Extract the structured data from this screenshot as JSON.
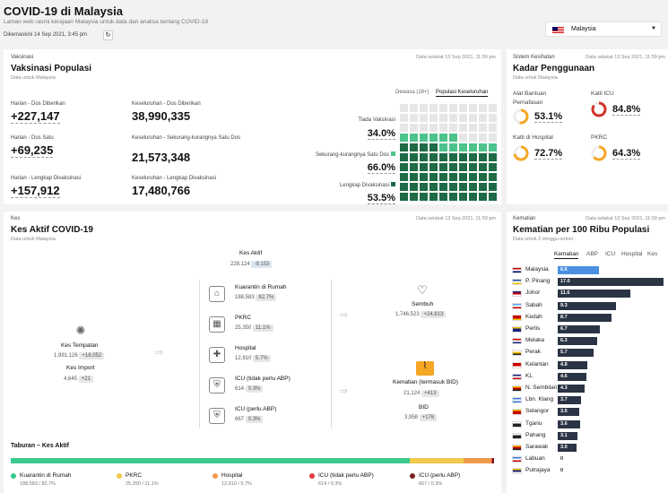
{
  "header": {
    "title": "COVID-19 di Malaysia",
    "subtitle": "Laman web rasmi kerajaan Malaysia untuk data dan analisa tentang COVID-19",
    "updated": "Dikemaskini 14 Sep 2021, 3:45 pm",
    "country_select": "Malaysia"
  },
  "vaccination": {
    "section": "Vaksinasi",
    "title": "Vaksinasi Populasi",
    "subtitle": "Data untuk Malaysia",
    "asof": "Data selakat 13 Sep 2021, 11:59 pm",
    "tabs": [
      "Dewasa (18+)",
      "Populasi Keseluruhan"
    ],
    "stats": [
      {
        "label": "Harian - Dos Diberikan",
        "value": "+227,147"
      },
      {
        "label": "Keseluruhan - Dos Diberikan",
        "value": "38,990,335"
      },
      {
        "label": "Harian - Dos Satu",
        "value": "+69,235"
      },
      {
        "label": "Keseluruhan - Sekurang-kurangnya Satu Dos",
        "value": "21,573,348"
      },
      {
        "label": "Harian - Lengkap Divaksinasi",
        "value": "+157,912"
      },
      {
        "label": "Keseluruhan - Lengkap Divaksinasi",
        "value": "17,480,766"
      }
    ],
    "breakdown": [
      {
        "label": "Tiada Vaksinasi",
        "value": "34.0%"
      },
      {
        "label": "Sekurang-kurangnya Satu Dos",
        "value": "66.0%"
      },
      {
        "label": "Lengkap Divaksinasi",
        "value": "53.5%"
      }
    ],
    "colors": {
      "none": "#e6e6e6",
      "one": "#4cc38a",
      "full": "#1e6b45"
    }
  },
  "health": {
    "section": "Sistem Kesihatan",
    "title": "Kadar Penggunaan",
    "subtitle": "Data untuk Malaysia",
    "asof": "Data selakat 13 Sep 2021, 11:59 pm",
    "items": [
      {
        "label1": "Alat Bantuan",
        "label2": "Pernafasan",
        "value": "53.1%",
        "pct": 53.1,
        "color": "#f5a623"
      },
      {
        "label1": "Katil ICU",
        "label2": "",
        "value": "84.8%",
        "pct": 84.8,
        "color": "#d0342c"
      },
      {
        "label1": "Katil di Hospital",
        "label2": "",
        "value": "72.7%",
        "pct": 72.7,
        "color": "#f5a623"
      },
      {
        "label1": "PKRC",
        "label2": "",
        "value": "64.3%",
        "pct": 64.3,
        "color": "#f5a623"
      }
    ]
  },
  "cases": {
    "section": "Kes",
    "title": "Kes Aktif COVID-19",
    "subtitle": "Data untuk Malaysia",
    "asof": "Data selakat 13 Sep 2021, 11:59 pm",
    "active_label": "Kes Aktif",
    "active_value": "228,124",
    "active_delta": "-9,153",
    "local_label": "Kes Tempatan",
    "local_value": "1,991,126",
    "local_delta": "+16,052",
    "import_label": "Kes Import",
    "import_value": "4,645",
    "import_delta": "+21",
    "categories": [
      {
        "label": "Kuarantin di Rumah",
        "value": "188,583",
        "pct": "82.7%"
      },
      {
        "label": "PKRC",
        "value": "25,350",
        "pct": "11.1%"
      },
      {
        "label": "Hospital",
        "value": "12,910",
        "pct": "5.7%"
      },
      {
        "label": "ICU (tidak perlu ABP)",
        "value": "614",
        "pct": "0.3%"
      },
      {
        "label": "ICU (perlu ABP)",
        "value": "667",
        "pct": "0.3%"
      }
    ],
    "recovered_label": "Sembuh",
    "recovered_value": "1,746,523",
    "recovered_delta": "+24,813",
    "deaths_label": "Kematian (termasuk BID)",
    "deaths_value": "21,124",
    "deaths_delta": "+413",
    "bid_label": "BID",
    "bid_value": "3,958",
    "bid_delta": "+176",
    "dist_title": "Taburan – Kes Aktif",
    "legend": [
      {
        "label": "Kuarantin di Rumah",
        "sub": "188,583 / 82.7%",
        "color": "#3cc98f",
        "share": 82.7
      },
      {
        "label": "PKRC",
        "sub": "25,350 / 11.1%",
        "color": "#f2c94c",
        "share": 11.1
      },
      {
        "label": "Hospital",
        "sub": "12,910 / 5.7%",
        "color": "#f2994a",
        "share": 5.7
      },
      {
        "label": "ICU (tidak perlu ABP)",
        "sub": "614 / 0.3%",
        "color": "#e23b3b",
        "share": 0.3
      },
      {
        "label": "ICU (perlu ABP)",
        "sub": "667 / 0.3%",
        "color": "#7a1f1f",
        "share": 0.3
      }
    ]
  },
  "deaths": {
    "section": "Kematian",
    "title": "Kematian per 100 Ribu Populasi",
    "subtitle": "Data untuk 2 minggu terkini",
    "asof": "Data selakat 13 Sep 2021, 11:59 pm",
    "tabs": [
      "Kematian",
      "ABP",
      "ICU",
      "Hospital",
      "Kes"
    ],
    "states": [
      {
        "name": "Malaysia",
        "value": 6.6,
        "label": "6.6",
        "flag": [
          "#cc0001",
          "#ffffff",
          "#010066"
        ]
      },
      {
        "name": "P. Pinang",
        "value": 17.0,
        "label": "17.0",
        "flag": [
          "#1e4fa3",
          "#ffffff",
          "#f2c200"
        ]
      },
      {
        "name": "Johor",
        "value": 11.6,
        "label": "11.6",
        "flag": [
          "#1a237e",
          "#cc0000",
          "#ffffff"
        ]
      },
      {
        "name": "Sabah",
        "value": 9.3,
        "label": "9.3",
        "flag": [
          "#4da6ff",
          "#ffffff",
          "#cc0000"
        ]
      },
      {
        "name": "Kedah",
        "value": 8.7,
        "label": "8.7",
        "flag": [
          "#cc0000",
          "#cc0000",
          "#f2c200"
        ]
      },
      {
        "name": "Perlis",
        "value": 6.7,
        "label": "6.7",
        "flag": [
          "#f2c200",
          "#1a237e",
          "#1a237e"
        ]
      },
      {
        "name": "Melaka",
        "value": 6.3,
        "label": "6.3",
        "flag": [
          "#cc0000",
          "#ffffff",
          "#1a237e"
        ]
      },
      {
        "name": "Perak",
        "value": 5.7,
        "label": "5.7",
        "flag": [
          "#ffffff",
          "#f2c200",
          "#222222"
        ]
      },
      {
        "name": "Kelantan",
        "value": 4.8,
        "label": "4.8",
        "flag": [
          "#cc0000",
          "#cc0000",
          "#ffffff"
        ]
      },
      {
        "name": "KL",
        "value": 4.6,
        "label": "4.6",
        "flag": [
          "#1a237e",
          "#ffffff",
          "#cc0000"
        ]
      },
      {
        "name": "N. Sembilan",
        "value": 4.3,
        "label": "4.3",
        "flag": [
          "#f2c200",
          "#cc0000",
          "#222222"
        ]
      },
      {
        "name": "Lbn. Klang",
        "value": 3.7,
        "label": "3.7",
        "flag": [
          "#3a7bd5",
          "#ffffff",
          "#3a7bd5"
        ]
      },
      {
        "name": "Selangor",
        "value": 3.5,
        "label": "3.5",
        "flag": [
          "#f2c200",
          "#cc0000",
          "#cc0000"
        ]
      },
      {
        "name": "Tganu",
        "value": 3.6,
        "label": "3.6",
        "flag": [
          "#ffffff",
          "#222222",
          "#222222"
        ]
      },
      {
        "name": "Pahang",
        "value": 3.1,
        "label": "3.1",
        "flag": [
          "#ffffff",
          "#222222",
          "#222222"
        ]
      },
      {
        "name": "Sarawak",
        "value": 3.0,
        "label": "3.0",
        "flag": [
          "#f2c200",
          "#cc0000",
          "#222222"
        ]
      },
      {
        "name": "Labuan",
        "value": 0,
        "label": "0",
        "flag": [
          "#3a7bd5",
          "#ffffff",
          "#cc0000"
        ]
      },
      {
        "name": "Putrajaya",
        "value": 0,
        "label": "0",
        "flag": [
          "#f2c200",
          "#1a237e",
          "#ffffff"
        ]
      }
    ]
  }
}
